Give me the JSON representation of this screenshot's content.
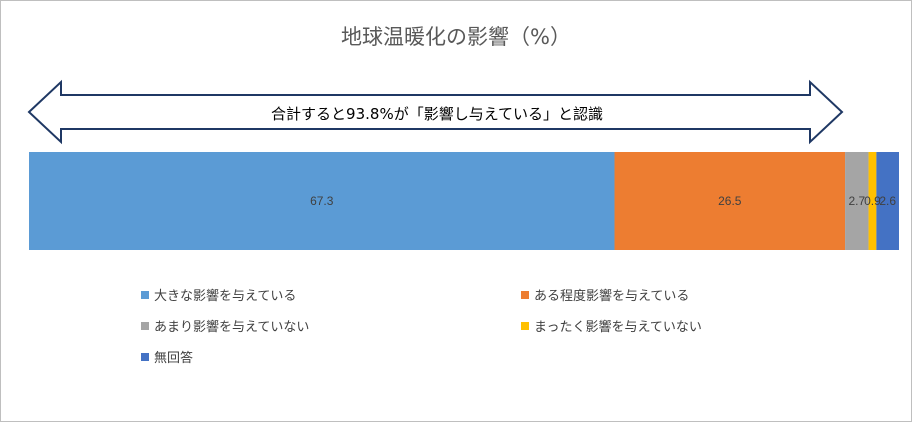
{
  "chart_data": {
    "type": "bar",
    "orientation": "horizontal-stacked-100",
    "title": "地球温暖化の影響（%）",
    "annotation": "合計すると93.8%が「影響し与えている」と認識",
    "categories": [
      ""
    ],
    "series": [
      {
        "name": "大きな影響を与えている",
        "values": [
          67.3
        ],
        "label": "67.3",
        "color": "#5B9BD5"
      },
      {
        "name": "ある程度影響を与えている",
        "values": [
          26.5
        ],
        "label": "26.5",
        "color": "#ED7D31"
      },
      {
        "name": "あまり影響を与えていない",
        "values": [
          2.7
        ],
        "label": "2.7",
        "color": "#A5A5A5"
      },
      {
        "name": "まったく影響を与えていない",
        "values": [
          0.9
        ],
        "label": "0.9",
        "color": "#FFC000"
      },
      {
        "name": "無回答",
        "values": [
          2.6
        ],
        "label": "2.6",
        "color": "#4472C4"
      }
    ],
    "xlim": [
      0,
      100
    ],
    "legend_position": "bottom",
    "grid": false
  }
}
